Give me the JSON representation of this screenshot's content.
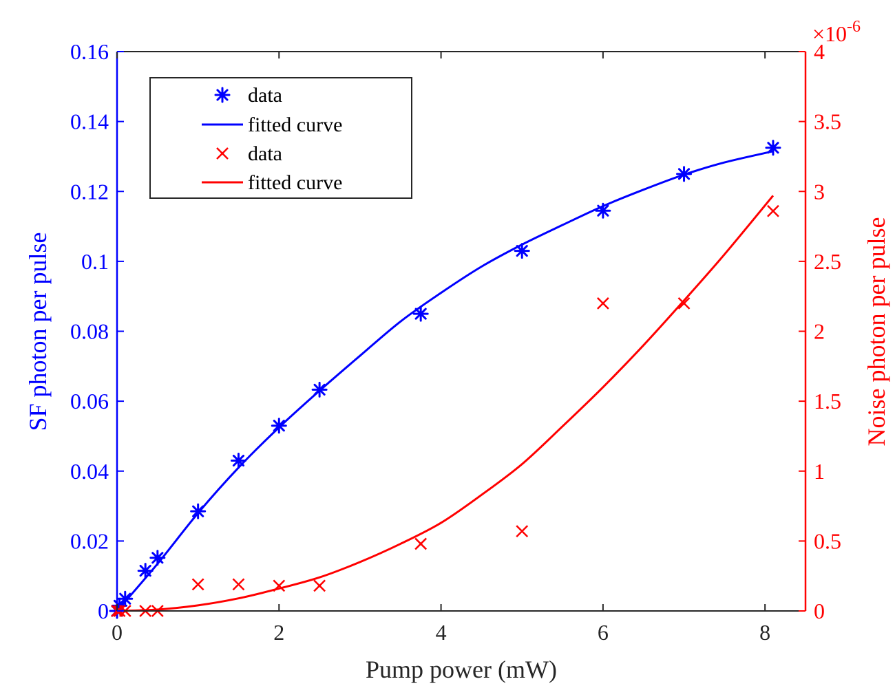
{
  "chart_data": {
    "type": "scatter",
    "xlabel": "Pump power (mW)",
    "xlim": [
      0,
      8.5
    ],
    "x_ticks": [
      "0",
      "2",
      "4",
      "6",
      "8"
    ],
    "x_tick_values": [
      0,
      2,
      4,
      6,
      8
    ],
    "left_axis": {
      "label": "SF photon per pulse",
      "color": "#0000ff",
      "ylim": [
        0,
        0.16
      ],
      "ticks": [
        "0",
        "0.02",
        "0.04",
        "0.06",
        "0.08",
        "0.1",
        "0.12",
        "0.14",
        "0.16"
      ],
      "tick_values": [
        0,
        0.02,
        0.04,
        0.06,
        0.08,
        0.1,
        0.12,
        0.14,
        0.16
      ]
    },
    "right_axis": {
      "label": "Noise photon per pulse",
      "color": "#ff0000",
      "ylim": [
        0,
        4
      ],
      "exponent": "×10-6",
      "exponent_base": "×10",
      "exponent_power": "-6",
      "ticks": [
        "0",
        "0.5",
        "1",
        "1.5",
        "2",
        "2.5",
        "3",
        "3.5",
        "4"
      ],
      "tick_values": [
        0,
        0.5,
        1,
        1.5,
        2,
        2.5,
        3,
        3.5,
        4
      ]
    },
    "series": [
      {
        "name": "data",
        "axis": "left",
        "kind": "marker",
        "marker": "asterisk",
        "color": "#0000ff",
        "x": [
          0,
          0.03,
          0.1,
          0.35,
          0.5,
          1.0,
          1.5,
          2.0,
          2.5,
          3.75,
          5.0,
          6.0,
          7.0,
          8.1
        ],
        "y": [
          0,
          0.0015,
          0.0035,
          0.0115,
          0.0152,
          0.0285,
          0.043,
          0.053,
          0.0633,
          0.085,
          0.103,
          0.1145,
          0.125,
          0.1325
        ]
      },
      {
        "name": "fitted curve",
        "axis": "left",
        "kind": "line",
        "color": "#0000ff",
        "x": [
          0,
          0.5,
          1,
          1.5,
          2,
          2.5,
          3,
          3.5,
          4,
          4.5,
          5,
          5.5,
          6,
          6.5,
          7,
          7.5,
          8.1
        ],
        "y": [
          0,
          0.0135,
          0.028,
          0.041,
          0.0525,
          0.063,
          0.073,
          0.0828,
          0.091,
          0.0985,
          0.1048,
          0.1104,
          0.1158,
          0.1205,
          0.1248,
          0.1283,
          0.1315
        ]
      },
      {
        "name": "data",
        "axis": "right",
        "kind": "marker",
        "marker": "x",
        "color": "#ff0000",
        "x": [
          0,
          0.03,
          0.1,
          0.35,
          0.5,
          1.0,
          1.5,
          2.0,
          2.5,
          3.75,
          5.0,
          6.0,
          7.0,
          8.1
        ],
        "y": [
          0,
          0,
          0,
          0,
          0,
          0.19,
          0.19,
          0.18,
          0.18,
          0.48,
          0.57,
          2.2,
          2.2,
          2.86
        ]
      },
      {
        "name": "fitted curve",
        "axis": "right",
        "kind": "line",
        "color": "#ff0000",
        "x": [
          0,
          0.5,
          1,
          1.5,
          2,
          2.5,
          3,
          3.5,
          4,
          4.5,
          5,
          5.5,
          6,
          6.5,
          7,
          7.5,
          8.1
        ],
        "y": [
          0,
          0.01,
          0.04,
          0.09,
          0.16,
          0.24,
          0.35,
          0.48,
          0.63,
          0.83,
          1.05,
          1.32,
          1.6,
          1.9,
          2.22,
          2.55,
          2.97
        ]
      }
    ],
    "legend": {
      "placement": "top-left",
      "entries": [
        {
          "label": "data",
          "marker": "asterisk",
          "color": "#0000ff"
        },
        {
          "label": "fitted curve",
          "marker": "line",
          "color": "#0000ff"
        },
        {
          "label": "data",
          "marker": "x",
          "color": "#ff0000"
        },
        {
          "label": "fitted curve",
          "marker": "line",
          "color": "#ff0000"
        }
      ]
    }
  }
}
